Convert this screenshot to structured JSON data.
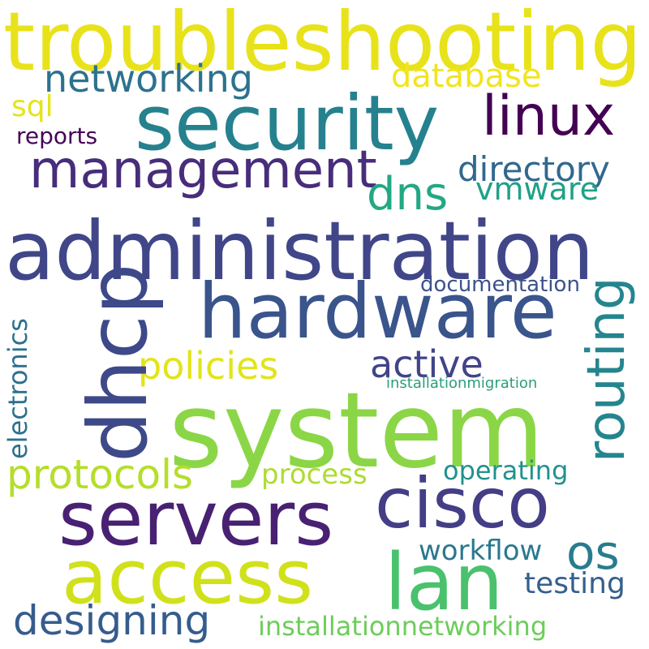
{
  "words": {
    "troubleshooting": {
      "text": "troubleshooting",
      "color": "#e8e21a"
    },
    "security": {
      "text": "security",
      "color": "#26818e"
    },
    "administration": {
      "text": "administration",
      "color": "#404688"
    },
    "hardware": {
      "text": "hardware",
      "color": "#3a548c"
    },
    "system": {
      "text": "system",
      "color": "#8bd646"
    },
    "servers": {
      "text": "servers",
      "color": "#482173"
    },
    "cisco": {
      "text": "cisco",
      "color": "#433e85"
    },
    "access": {
      "text": "access",
      "color": "#d0e11c"
    },
    "lan": {
      "text": "lan",
      "color": "#4ac16d"
    },
    "linux": {
      "text": "linux",
      "color": "#440154"
    },
    "management": {
      "text": "management",
      "color": "#472d7b"
    },
    "networking": {
      "text": "networking",
      "color": "#2c728e"
    },
    "database": {
      "text": "database",
      "color": "#f1e51d"
    },
    "sql": {
      "text": "sql",
      "color": "#e5e419"
    },
    "reports": {
      "text": "reports",
      "color": "#450457"
    },
    "directory": {
      "text": "directory",
      "color": "#31688e"
    },
    "dns": {
      "text": "dns",
      "color": "#22a884"
    },
    "vmware": {
      "text": "vmware",
      "color": "#1fa187"
    },
    "documentation": {
      "text": "documentation",
      "color": "#3b528b"
    },
    "policies": {
      "text": "policies",
      "color": "#e2e418"
    },
    "active": {
      "text": "active",
      "color": "#414487"
    },
    "installationmigration": {
      "text": "installationmigration",
      "color": "#2a9d7c"
    },
    "protocols": {
      "text": "protocols",
      "color": "#b5de2b"
    },
    "process": {
      "text": "process",
      "color": "#addc30"
    },
    "operating": {
      "text": "operating",
      "color": "#21918c"
    },
    "os": {
      "text": "os",
      "color": "#287c8e"
    },
    "workflow": {
      "text": "workflow",
      "color": "#2a788e"
    },
    "testing": {
      "text": "testing",
      "color": "#355f8d"
    },
    "designing": {
      "text": "designing",
      "color": "#365c8d"
    },
    "installationnetworking": {
      "text": "installationnetworking",
      "color": "#6ccd5a"
    },
    "dhcp": {
      "text": "dhcp",
      "color": "#3e4989"
    },
    "routing": {
      "text": "routing",
      "color": "#25858e"
    },
    "electronics": {
      "text": "electronics",
      "color": "#2d708e"
    }
  }
}
